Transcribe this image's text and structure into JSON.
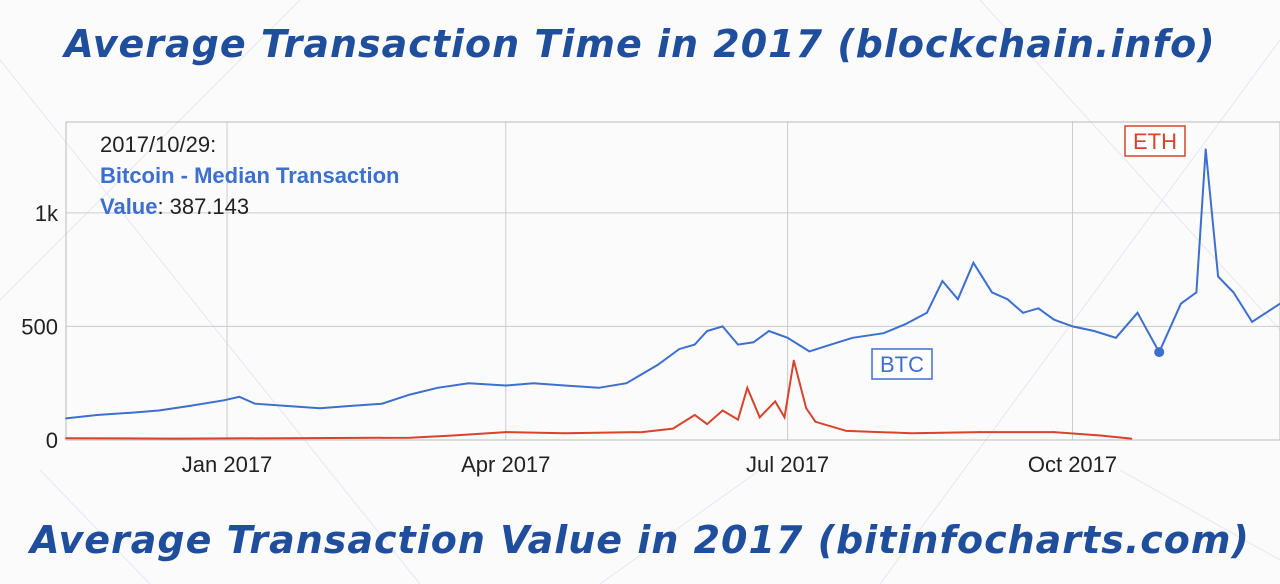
{
  "titles": {
    "top": "Average Transaction Time in 2017 (blockchain.info)",
    "bottom": "Average Transaction Value in 2017 (bitinfocharts.com)"
  },
  "tooltip": {
    "date": "2017/10/29:",
    "label_line1": "Bitcoin - Median Transaction",
    "label_line2": "Value",
    "separator": ":",
    "value": "387.143"
  },
  "colors": {
    "btc": "#3d6fcf",
    "eth": "#d9432b",
    "title": "#1f4e9c",
    "grid": "#cccccc"
  },
  "chart_data": {
    "type": "line",
    "title": "",
    "xlabel": "",
    "ylabel": "",
    "x_range": [
      "2016-11-10",
      "2017-12-07"
    ],
    "ylim": [
      0,
      1400
    ],
    "y_ticks": [
      {
        "value": 0,
        "label": "0"
      },
      {
        "value": 500,
        "label": "500"
      },
      {
        "value": 1000,
        "label": "1k"
      }
    ],
    "x_ticks": [
      {
        "date": "2017-01-01",
        "label": "Jan 2017"
      },
      {
        "date": "2017-04-01",
        "label": "Apr 2017"
      },
      {
        "date": "2017-07-01",
        "label": "Jul 2017"
      },
      {
        "date": "2017-10-01",
        "label": "Oct 2017"
      }
    ],
    "grid": true,
    "highlight": {
      "series": "BTC",
      "date": "2017-10-29",
      "value": 387.143
    },
    "series": [
      {
        "name": "BTC",
        "points": [
          [
            "2016-11-10",
            95
          ],
          [
            "2016-11-20",
            110
          ],
          [
            "2016-12-01",
            120
          ],
          [
            "2016-12-10",
            130
          ],
          [
            "2016-12-20",
            150
          ],
          [
            "2016-12-31",
            175
          ],
          [
            "2017-01-05",
            190
          ],
          [
            "2017-01-10",
            160
          ],
          [
            "2017-01-20",
            150
          ],
          [
            "2017-01-31",
            140
          ],
          [
            "2017-02-10",
            150
          ],
          [
            "2017-02-20",
            160
          ],
          [
            "2017-03-01",
            200
          ],
          [
            "2017-03-10",
            230
          ],
          [
            "2017-03-20",
            250
          ],
          [
            "2017-04-01",
            240
          ],
          [
            "2017-04-10",
            250
          ],
          [
            "2017-04-20",
            240
          ],
          [
            "2017-05-01",
            230
          ],
          [
            "2017-05-10",
            250
          ],
          [
            "2017-05-20",
            330
          ],
          [
            "2017-05-27",
            400
          ],
          [
            "2017-06-01",
            420
          ],
          [
            "2017-06-05",
            480
          ],
          [
            "2017-06-10",
            500
          ],
          [
            "2017-06-15",
            420
          ],
          [
            "2017-06-20",
            430
          ],
          [
            "2017-06-25",
            480
          ],
          [
            "2017-07-01",
            450
          ],
          [
            "2017-07-08",
            390
          ],
          [
            "2017-07-15",
            420
          ],
          [
            "2017-07-22",
            450
          ],
          [
            "2017-08-01",
            470
          ],
          [
            "2017-08-08",
            510
          ],
          [
            "2017-08-15",
            560
          ],
          [
            "2017-08-20",
            700
          ],
          [
            "2017-08-25",
            620
          ],
          [
            "2017-08-30",
            780
          ],
          [
            "2017-09-05",
            650
          ],
          [
            "2017-09-10",
            620
          ],
          [
            "2017-09-15",
            560
          ],
          [
            "2017-09-20",
            580
          ],
          [
            "2017-09-25",
            530
          ],
          [
            "2017-10-01",
            500
          ],
          [
            "2017-10-08",
            480
          ],
          [
            "2017-10-15",
            450
          ],
          [
            "2017-10-22",
            560
          ],
          [
            "2017-10-29",
            387.143
          ],
          [
            "2017-11-05",
            600
          ],
          [
            "2017-11-10",
            650
          ],
          [
            "2017-11-13",
            1280
          ],
          [
            "2017-11-17",
            720
          ],
          [
            "2017-11-22",
            650
          ],
          [
            "2017-11-28",
            520
          ],
          [
            "2017-12-07",
            600
          ]
        ]
      },
      {
        "name": "ETH",
        "points": [
          [
            "2016-11-10",
            8
          ],
          [
            "2016-12-15",
            6
          ],
          [
            "2017-01-20",
            8
          ],
          [
            "2017-03-01",
            10
          ],
          [
            "2017-03-15",
            20
          ],
          [
            "2017-04-01",
            35
          ],
          [
            "2017-04-20",
            30
          ],
          [
            "2017-05-15",
            35
          ],
          [
            "2017-05-25",
            50
          ],
          [
            "2017-06-01",
            110
          ],
          [
            "2017-06-05",
            70
          ],
          [
            "2017-06-10",
            130
          ],
          [
            "2017-06-15",
            90
          ],
          [
            "2017-06-18",
            230
          ],
          [
            "2017-06-22",
            100
          ],
          [
            "2017-06-27",
            170
          ],
          [
            "2017-06-30",
            100
          ],
          [
            "2017-07-03",
            350
          ],
          [
            "2017-07-07",
            140
          ],
          [
            "2017-07-10",
            80
          ],
          [
            "2017-07-20",
            40
          ],
          [
            "2017-08-10",
            30
          ],
          [
            "2017-09-01",
            35
          ],
          [
            "2017-09-25",
            35
          ],
          [
            "2017-10-10",
            20
          ],
          [
            "2017-10-20",
            6
          ]
        ]
      }
    ]
  }
}
